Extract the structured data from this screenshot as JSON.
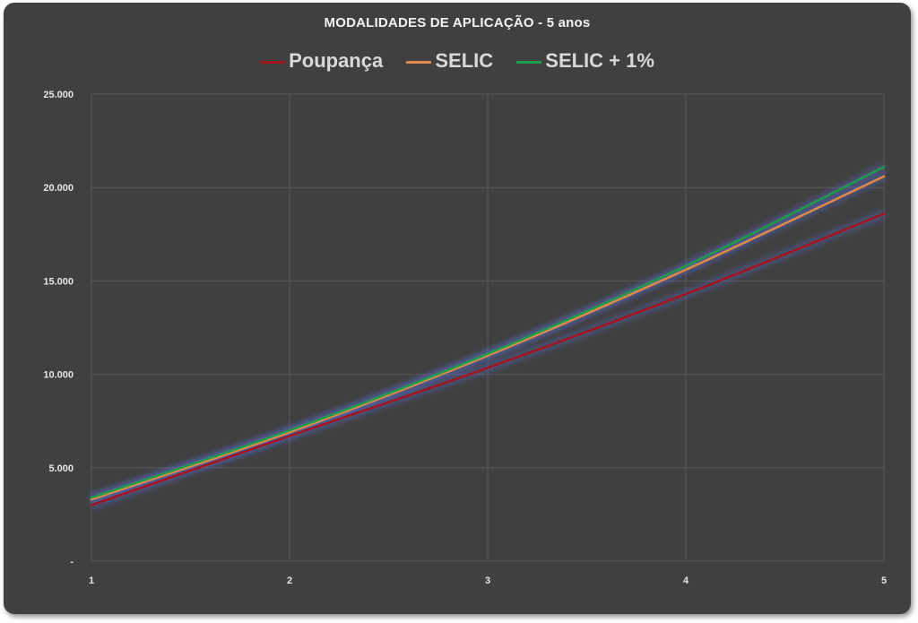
{
  "chart_data": {
    "type": "line",
    "title": "MODALIDADES DE APLICAÇÃO - 5 anos",
    "x": [
      1,
      2,
      3,
      4,
      5
    ],
    "x_tick_labels": [
      "1",
      "2",
      "3",
      "4",
      "5"
    ],
    "ylim": [
      0,
      25000
    ],
    "y_ticks": [
      0,
      5000,
      10000,
      15000,
      20000,
      25000
    ],
    "y_tick_labels": [
      "-",
      "5.000",
      "10.000",
      "15.000",
      "20.000",
      "25.000"
    ],
    "grid": true,
    "legend_position": "top",
    "series": [
      {
        "name": "Poupança",
        "color": "#a3141c",
        "values": [
          3000,
          6700,
          10350,
          14300,
          18600
        ]
      },
      {
        "name": "SELIC",
        "color": "#e08a4a",
        "values": [
          3300,
          6900,
          11000,
          15600,
          20600
        ]
      },
      {
        "name": "SELIC + 1%",
        "color": "#1f9b4a",
        "values": [
          3400,
          7000,
          11100,
          15800,
          21100
        ]
      }
    ]
  }
}
